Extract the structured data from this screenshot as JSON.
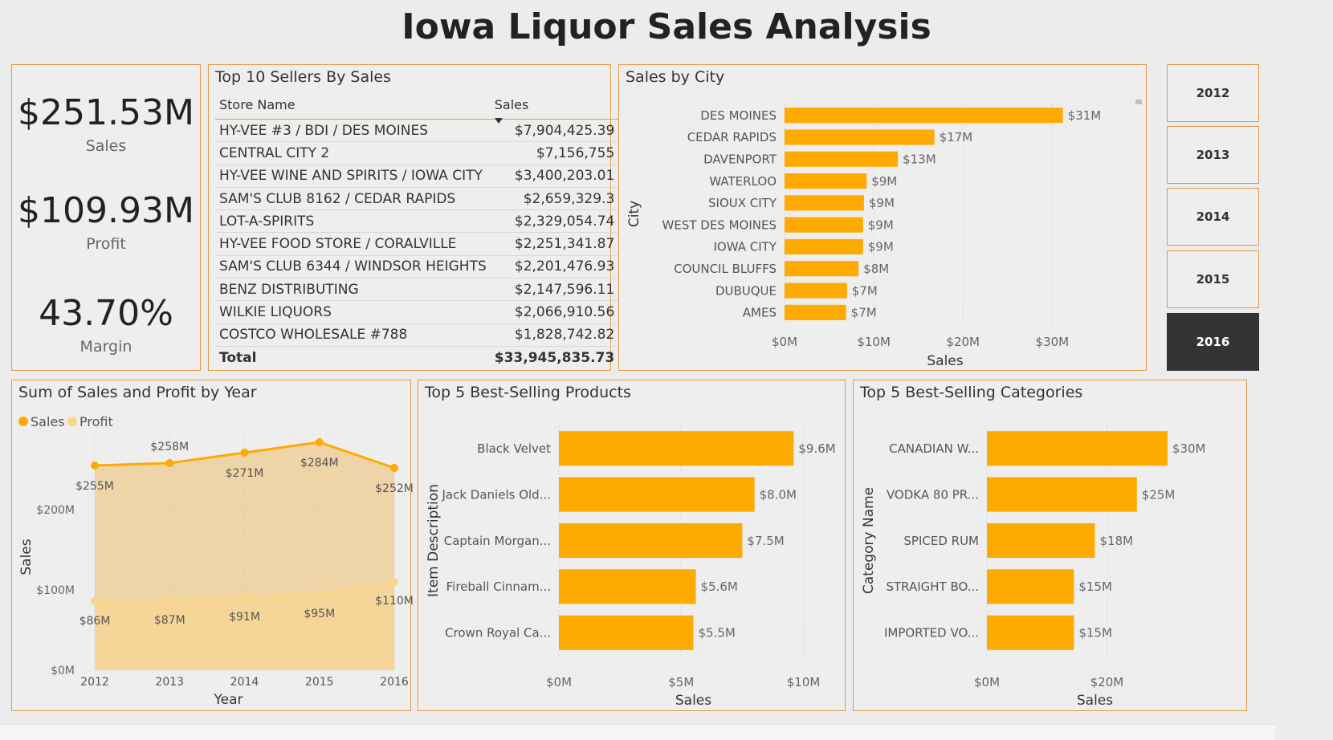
{
  "title": "Iowa Liquor Sales Analysis",
  "colors": {
    "accent": "#ffaa00",
    "profit": "#f9d68a",
    "border": "#e39a4a",
    "selected": "#333333"
  },
  "kpis": [
    {
      "value": "$251.53M",
      "label": "Sales"
    },
    {
      "value": "$109.93M",
      "label": "Profit"
    },
    {
      "value": "43.70%",
      "label": "Margin"
    }
  ],
  "sellers": {
    "title": "Top 10 Sellers By Sales",
    "col_store": "Store Name",
    "col_sales": "Sales",
    "rows": [
      {
        "store": "HY-VEE #3 / BDI / DES MOINES",
        "sales": "$7,904,425.39"
      },
      {
        "store": "CENTRAL CITY 2",
        "sales": "$7,156,755"
      },
      {
        "store": "HY-VEE WINE AND SPIRITS / IOWA CITY",
        "sales": "$3,400,203.01"
      },
      {
        "store": "SAM'S CLUB 8162 / CEDAR RAPIDS",
        "sales": "$2,659,329.3"
      },
      {
        "store": "LOT-A-SPIRITS",
        "sales": "$2,329,054.74"
      },
      {
        "store": "HY-VEE FOOD STORE / CORALVILLE",
        "sales": "$2,251,341.87"
      },
      {
        "store": "SAM'S CLUB 6344 / WINDSOR HEIGHTS",
        "sales": "$2,201,476.93"
      },
      {
        "store": "BENZ DISTRIBUTING",
        "sales": "$2,147,596.11"
      },
      {
        "store": "WILKIE LIQUORS",
        "sales": "$2,066,910.56"
      },
      {
        "store": "COSTCO WHOLESALE #788",
        "sales": "$1,828,742.82"
      }
    ],
    "total_label": "Total",
    "total_value": "$33,945,835.73"
  },
  "years": [
    "2012",
    "2013",
    "2014",
    "2015",
    "2016"
  ],
  "selected_year": "2016",
  "chart_data": [
    {
      "type": "bar",
      "orientation": "horizontal",
      "title": "Sales by City",
      "xlabel": "Sales",
      "ylabel": "City",
      "categories": [
        "DES MOINES",
        "CEDAR RAPIDS",
        "DAVENPORT",
        "WATERLOO",
        "SIOUX CITY",
        "WEST DES MOINES",
        "IOWA CITY",
        "COUNCIL BLUFFS",
        "DUBUQUE",
        "AMES"
      ],
      "values": [
        31.2,
        16.8,
        12.7,
        9.2,
        8.9,
        8.8,
        8.8,
        8.3,
        7.0,
        6.9
      ],
      "data_labels": [
        "$31M",
        "$17M",
        "$13M",
        "$9M",
        "$9M",
        "$9M",
        "$9M",
        "$8M",
        "$7M",
        "$7M"
      ],
      "xticks": [
        0,
        10,
        20,
        30
      ],
      "xtick_labels": [
        "$0M",
        "$10M",
        "$20M",
        "$30M"
      ],
      "xlim": [
        0,
        36
      ]
    },
    {
      "type": "area",
      "title": "Sum of Sales and Profit by Year",
      "xlabel": "Year",
      "ylabel": "Sales",
      "x": [
        "2012",
        "2013",
        "2014",
        "2015",
        "2016"
      ],
      "series": [
        {
          "name": "Sales",
          "values": [
            255,
            258,
            271,
            284,
            252
          ],
          "labels": [
            "$255M",
            "$258M",
            "$271M",
            "$284M",
            "$252M"
          ]
        },
        {
          "name": "Profit",
          "values": [
            86,
            87,
            91,
            95,
            110
          ],
          "labels": [
            "$86M",
            "$87M",
            "$91M",
            "$95M",
            "$110M"
          ]
        }
      ],
      "yticks": [
        0,
        100,
        200
      ],
      "ytick_labels": [
        "$0M",
        "$100M",
        "$200M"
      ],
      "ylim": [
        0,
        300
      ],
      "legend": "top-left"
    },
    {
      "type": "bar",
      "orientation": "horizontal",
      "title": "Top 5 Best-Selling Products",
      "xlabel": "Sales",
      "ylabel": "Item Description",
      "categories": [
        "Black Velvet",
        "Jack Daniels Old...",
        "Captain Morgan...",
        "Fireball Cinnam...",
        "Crown Royal Ca..."
      ],
      "values": [
        9.6,
        8.0,
        7.5,
        5.6,
        5.5
      ],
      "data_labels": [
        "$9.6M",
        "$8.0M",
        "$7.5M",
        "$5.6M",
        "$5.5M"
      ],
      "xticks": [
        0,
        5,
        10
      ],
      "xtick_labels": [
        "$0M",
        "$5M",
        "$10M"
      ],
      "xlim": [
        0,
        11
      ]
    },
    {
      "type": "bar",
      "orientation": "horizontal",
      "title": "Top 5 Best-Selling Categories",
      "xlabel": "Sales",
      "ylabel": "Category Name",
      "categories": [
        "CANADIAN W...",
        "VODKA 80 PR...",
        "SPICED RUM",
        "STRAIGHT BO...",
        "IMPORTED VO..."
      ],
      "values": [
        30.1,
        25.0,
        18.0,
        14.5,
        14.5
      ],
      "data_labels": [
        "$30M",
        "$25M",
        "$18M",
        "$15M",
        "$15M"
      ],
      "xticks": [
        0,
        20
      ],
      "xtick_labels": [
        "$0M",
        "$20M"
      ],
      "xlim": [
        0,
        36
      ]
    }
  ]
}
